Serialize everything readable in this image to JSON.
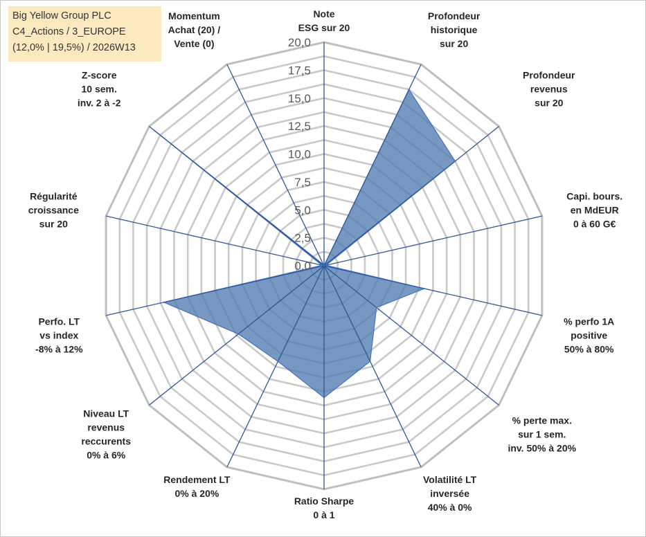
{
  "info": {
    "line1": "Big Yellow Group PLC",
    "line2": "C4_Actions / 3_EUROPE",
    "line3": "(12,0% | 19,5%) / 2026W13"
  },
  "chart_data": {
    "type": "radar",
    "title": "",
    "rmin": 0,
    "rmax": 20,
    "ticks": [
      "0,0",
      "2,5",
      "5,0",
      "7,5",
      "10,0",
      "12,5",
      "15,0",
      "17,5",
      "20,0"
    ],
    "tick_values": [
      0,
      2.5,
      5,
      7.5,
      10,
      12.5,
      15,
      17.5,
      20
    ],
    "grid_rings": 16,
    "axes": [
      [
        "Note",
        "ESG sur 20"
      ],
      [
        "Profondeur",
        "historique",
        "sur 20"
      ],
      [
        "Profondeur",
        "revenus",
        "sur 20"
      ],
      [
        "Capi. bours.",
        "en MdEUR",
        "0 à 60 G€"
      ],
      [
        "% perfo 1A",
        "positive",
        "50% à 80%"
      ],
      [
        "% perte max.",
        "sur 1 sem.",
        "inv. 50% à 20%"
      ],
      [
        "Volatilité LT",
        "inversée",
        "40% à 0%"
      ],
      [
        "Ratio Sharpe",
        "0 à 1"
      ],
      [
        "Rendement LT",
        "0% à 20%"
      ],
      [
        "Niveau LT",
        "revenus",
        "reccurents",
        "0% à 6%"
      ],
      [
        "Perfo. LT",
        "vs index",
        "-8% à 12%"
      ],
      [
        "Régularité",
        "croissance",
        "sur 20"
      ],
      [
        "Z-score",
        "10 sem.",
        "inv. 2 à -2"
      ],
      [
        "Momentum",
        "Achat (20) /",
        "Vente (0)"
      ]
    ],
    "values": [
      0,
      17.5,
      15.0,
      0.2,
      9.2,
      6.0,
      9.5,
      11.8,
      9.5,
      9.8,
      14.7,
      0.2,
      19.4,
      0.1
    ],
    "colors": {
      "fill": "#4f7bb0",
      "fill_opacity": 0.78,
      "series_line": "#4472c4",
      "spoke": "#2f5597",
      "grid": "#c9c9c9",
      "outer_grid": "#bfbfbf"
    }
  }
}
